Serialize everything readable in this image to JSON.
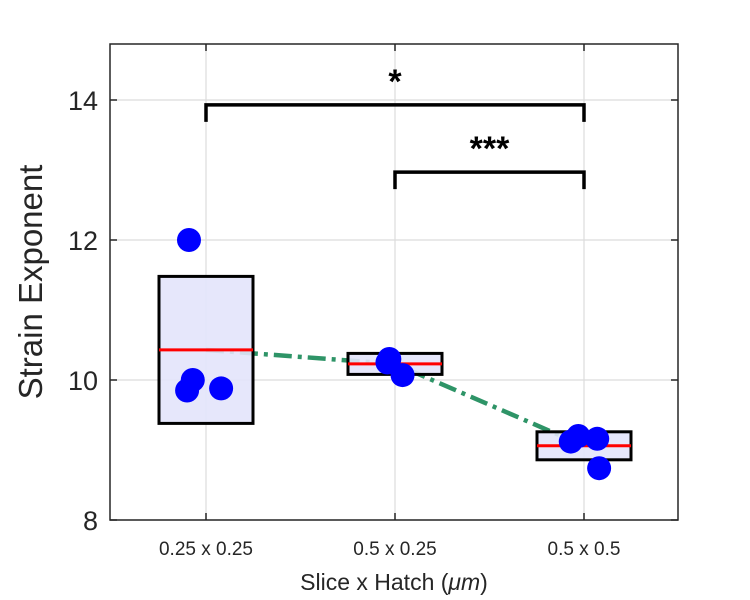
{
  "chart_data": {
    "type": "box",
    "title": "",
    "xlabel": "Slice x Hatch (",
    "xlabel_unit": "μm",
    "xlabel_suffix": ")",
    "ylabel": "Strain Exponent",
    "ylim": [
      8,
      14.8
    ],
    "yticks": [
      8,
      10,
      12,
      14
    ],
    "categories": [
      "0.25 x 0.25",
      "0.5 x 0.25",
      "0.5 x 0.5"
    ],
    "grid": true,
    "boxes": [
      {
        "category": "0.25 x 0.25",
        "q1": 9.38,
        "median": 10.43,
        "q3": 11.48
      },
      {
        "category": "0.5 x 0.25",
        "q1": 10.08,
        "median": 10.23,
        "q3": 10.38
      },
      {
        "category": "0.5 x 0.5",
        "q1": 8.86,
        "median": 9.06,
        "q3": 9.26
      }
    ],
    "points": [
      {
        "category": "0.25 x 0.25",
        "offset": -0.09,
        "y": 12.0
      },
      {
        "category": "0.25 x 0.25",
        "offset": -0.07,
        "y": 10.0
      },
      {
        "category": "0.25 x 0.25",
        "offset": -0.1,
        "y": 9.85
      },
      {
        "category": "0.25 x 0.25",
        "offset": 0.08,
        "y": 9.88
      },
      {
        "category": "0.5 x 0.25",
        "offset": -0.03,
        "y": 10.3
      },
      {
        "category": "0.5 x 0.25",
        "offset": -0.04,
        "y": 10.25
      },
      {
        "category": "0.5 x 0.25",
        "offset": 0.04,
        "y": 10.07
      },
      {
        "category": "0.5 x 0.5",
        "offset": -0.07,
        "y": 9.12
      },
      {
        "category": "0.5 x 0.5",
        "offset": -0.03,
        "y": 9.2
      },
      {
        "category": "0.5 x 0.5",
        "offset": 0.07,
        "y": 9.16
      },
      {
        "category": "0.5 x 0.5",
        "offset": 0.08,
        "y": 8.74
      }
    ],
    "trend_line": {
      "style": "dash-dot",
      "color": "#2e9467",
      "y": [
        10.43,
        10.23,
        9.06
      ]
    },
    "significance": [
      {
        "from": "0.25 x 0.25",
        "to": "0.5 x 0.5",
        "y": 13.93,
        "label": "*"
      },
      {
        "from": "0.5 x 0.25",
        "to": "0.5 x 0.5",
        "y": 12.97,
        "label": "***"
      }
    ],
    "colors": {
      "box_fill": "#e3e4fb",
      "box_edge": "#000000",
      "median": "#ff0000",
      "points": "#0000ff",
      "grid": "#dcdcdc",
      "axis": "#262626"
    }
  }
}
